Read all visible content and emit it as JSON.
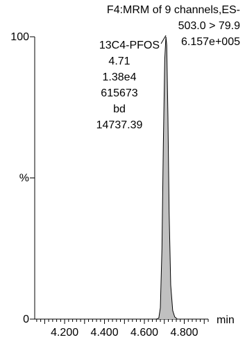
{
  "chart_data": {
    "type": "line",
    "header": {
      "line1": "F4:MRM of 9 channels,ES-",
      "line2": "503.0 > 79.9",
      "intensity": "6.157e+005"
    },
    "peak_annotation": {
      "compound": "13C4-PFOS",
      "lines": [
        "4.71",
        "1.38e4",
        "615673",
        "bd",
        "14737.39"
      ]
    },
    "xlabel": "min",
    "ylabel": "%",
    "xlim": [
      4.05,
      4.92
    ],
    "ylim": [
      0,
      100
    ],
    "x_ticks": [
      "4.200",
      "4.400",
      "4.600",
      "4.800"
    ],
    "x_tick_values": [
      4.2,
      4.4,
      4.6,
      4.8
    ],
    "y_ticks": [
      "0",
      "%",
      "100"
    ],
    "y_tick_values": [
      0,
      50,
      100
    ],
    "series": [
      {
        "fill_color": "#c0c0c0",
        "line_color": "#000000",
        "x": [
          4.05,
          4.66,
          4.672,
          4.68,
          4.688,
          4.695,
          4.702,
          4.708,
          4.712,
          4.718,
          4.724,
          4.732,
          4.742,
          4.752,
          4.765,
          4.92
        ],
        "y": [
          0,
          0,
          0.3,
          4,
          25,
          62,
          92,
          100,
          97,
          72,
          38,
          12,
          3,
          0.8,
          0,
          0
        ]
      }
    ]
  }
}
